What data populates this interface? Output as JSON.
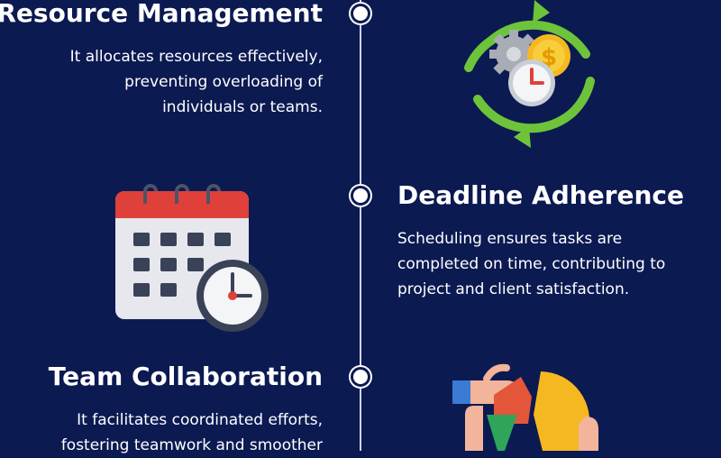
{
  "items": [
    {
      "title": "Resource Management",
      "description": "It allocates resources effectively,\npreventing overloading of\nindividuals or teams."
    },
    {
      "title": "Deadline Adherence",
      "description": "Scheduling ensures tasks are\ncompleted on time, contributing to\nproject and client satisfaction."
    },
    {
      "title": "Team Collaboration",
      "description": "It facilitates coordinated efforts,\nfostering teamwork and smoother"
    }
  ],
  "icons": {
    "resource": "cycle-gear-coin-clock-icon",
    "deadline": "calendar-clock-icon",
    "collaboration": "hands-puzzle-icon",
    "coin_symbol": "$"
  },
  "colors": {
    "background": "#0c1a52",
    "text": "#ffffff",
    "timeline": "#cfd6ea",
    "arrow_green": "#6dc43a",
    "calendar_red": "#e0403a",
    "coin_yellow": "#f5b820"
  }
}
